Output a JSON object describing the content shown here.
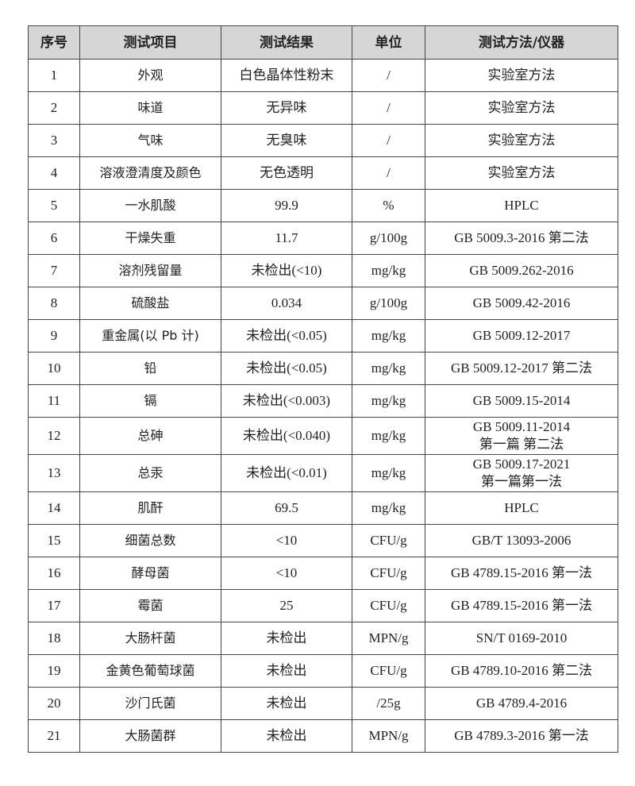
{
  "table": {
    "headers": [
      "序号",
      "测试项目",
      "测试结果",
      "单位",
      "测试方法/仪器"
    ],
    "rows": [
      [
        "1",
        "外观",
        "白色晶体性粉末",
        "/",
        "实验室方法"
      ],
      [
        "2",
        "味道",
        "无异味",
        "/",
        "实验室方法"
      ],
      [
        "3",
        "气味",
        "无臭味",
        "/",
        "实验室方法"
      ],
      [
        "4",
        "溶液澄清度及颜色",
        "无色透明",
        "/",
        "实验室方法"
      ],
      [
        "5",
        "一水肌酸",
        "99.9",
        "%",
        "HPLC"
      ],
      [
        "6",
        "干燥失重",
        "11.7",
        "g/100g",
        "GB 5009.3-2016 第二法"
      ],
      [
        "7",
        "溶剂残留量",
        "未检出(<10)",
        "mg/kg",
        "GB 5009.262-2016"
      ],
      [
        "8",
        "硫酸盐",
        "0.034",
        "g/100g",
        "GB 5009.42-2016"
      ],
      [
        "9",
        "重金属(以 Pb 计)",
        "未检出(<0.05)",
        "mg/kg",
        "GB 5009.12-2017"
      ],
      [
        "10",
        "铅",
        "未检出(<0.05)",
        "mg/kg",
        "GB 5009.12-2017 第二法"
      ],
      [
        "11",
        "镉",
        "未检出(<0.003)",
        "mg/kg",
        "GB 5009.15-2014"
      ],
      [
        "12",
        "总砷",
        "未检出(<0.040)",
        "mg/kg",
        "GB 5009.11-2014\n第一篇 第二法"
      ],
      [
        "13",
        "总汞",
        "未检出(<0.01)",
        "mg/kg",
        "GB 5009.17-2021\n第一篇第一法"
      ],
      [
        "14",
        "肌酐",
        "69.5",
        "mg/kg",
        "HPLC"
      ],
      [
        "15",
        "细菌总数",
        "<10",
        "CFU/g",
        "GB/T 13093-2006"
      ],
      [
        "16",
        "酵母菌",
        "<10",
        "CFU/g",
        "GB 4789.15-2016 第一法"
      ],
      [
        "17",
        "霉菌",
        "25",
        "CFU/g",
        "GB 4789.15-2016 第一法"
      ],
      [
        "18",
        "大肠杆菌",
        "未检出",
        "MPN/g",
        "SN/T 0169-2010"
      ],
      [
        "19",
        "金黄色葡萄球菌",
        "未检出",
        "CFU/g",
        "GB 4789.10-2016 第二法"
      ],
      [
        "20",
        "沙门氏菌",
        "未检出",
        "/25g",
        "GB 4789.4-2016"
      ],
      [
        "21",
        "大肠菌群",
        "未检出",
        "MPN/g",
        "GB 4789.3-2016 第一法"
      ]
    ]
  }
}
